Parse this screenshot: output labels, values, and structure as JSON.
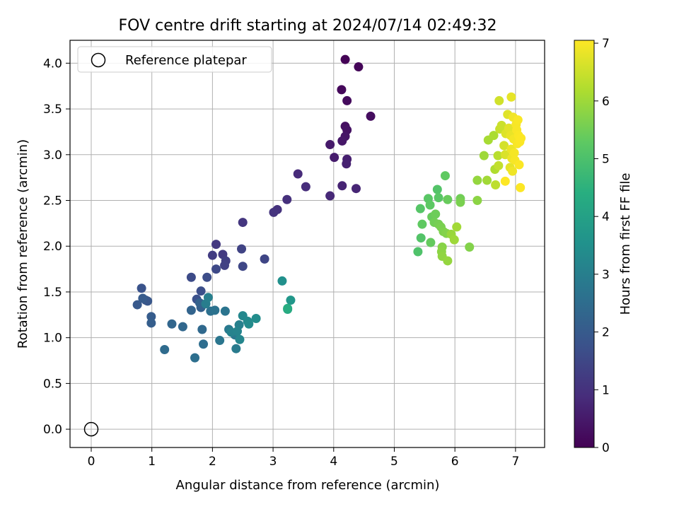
{
  "chart_data": {
    "type": "scatter",
    "title": "FOV centre drift starting at 2024/07/14 02:49:32",
    "xlabel": "Angular distance from reference (arcmin)",
    "ylabel": "Rotation from reference (arcmin)",
    "xlim": [
      -0.35,
      7.48
    ],
    "ylim": [
      -0.2,
      4.25
    ],
    "x_ticks": [
      0,
      1,
      2,
      3,
      4,
      5,
      6,
      7
    ],
    "y_ticks": [
      0.0,
      0.5,
      1.0,
      1.5,
      2.0,
      2.5,
      3.0,
      3.5,
      4.0
    ],
    "x_tick_labels": [
      "0",
      "1",
      "2",
      "3",
      "4",
      "5",
      "6",
      "7"
    ],
    "y_tick_labels": [
      "0.0",
      "0.5",
      "1.0",
      "1.5",
      "2.0",
      "2.5",
      "3.0",
      "3.5",
      "4.0"
    ],
    "grid": true,
    "colormap": "viridis",
    "legend": {
      "placement": "upper-left",
      "label": "Reference platepar"
    },
    "reference_point": {
      "x": 0,
      "y": 0
    },
    "colorbar": {
      "label": "Hours from first FF file",
      "range": [
        0,
        7.05
      ],
      "ticks": [
        0,
        1,
        2,
        3,
        4,
        5,
        6,
        7
      ],
      "tick_labels": [
        "0",
        "1",
        "2",
        "3",
        "4",
        "5",
        "6",
        "7"
      ]
    },
    "point_fields": [
      "x_arcmin",
      "y_arcmin",
      "hours"
    ],
    "points": [
      [
        4.19,
        4.04,
        0.05
      ],
      [
        4.41,
        3.96,
        0.1
      ],
      [
        4.13,
        3.71,
        0.15
      ],
      [
        4.22,
        3.59,
        0.2
      ],
      [
        4.61,
        3.42,
        0.25
      ],
      [
        4.19,
        3.31,
        0.3
      ],
      [
        4.22,
        3.27,
        0.35
      ],
      [
        4.19,
        3.2,
        0.4
      ],
      [
        4.14,
        3.15,
        0.45
      ],
      [
        3.94,
        3.11,
        0.5
      ],
      [
        4.01,
        2.97,
        0.55
      ],
      [
        4.22,
        2.95,
        0.6
      ],
      [
        4.21,
        2.9,
        0.65
      ],
      [
        4.14,
        2.66,
        0.7
      ],
      [
        4.37,
        2.63,
        0.75
      ],
      [
        3.94,
        2.55,
        0.8
      ],
      [
        3.41,
        2.79,
        0.85
      ],
      [
        3.54,
        2.65,
        0.9
      ],
      [
        3.23,
        2.51,
        0.95
      ],
      [
        3.07,
        2.4,
        1.0
      ],
      [
        3.01,
        2.37,
        1.05
      ],
      [
        2.5,
        2.26,
        1.1
      ],
      [
        2.06,
        2.02,
        1.15
      ],
      [
        2.17,
        1.91,
        1.2
      ],
      [
        2.0,
        1.9,
        1.25
      ],
      [
        2.22,
        1.84,
        1.3
      ],
      [
        2.2,
        1.79,
        1.35
      ],
      [
        2.48,
        1.97,
        1.4
      ],
      [
        2.86,
        1.86,
        1.45
      ],
      [
        2.5,
        1.78,
        1.5
      ],
      [
        2.06,
        1.75,
        1.55
      ],
      [
        1.65,
        1.66,
        1.6
      ],
      [
        1.91,
        1.66,
        1.65
      ],
      [
        1.81,
        1.51,
        1.7
      ],
      [
        1.74,
        1.42,
        1.75
      ],
      [
        0.83,
        1.54,
        1.8
      ],
      [
        0.9,
        1.41,
        1.85
      ],
      [
        0.93,
        1.4,
        1.9
      ],
      [
        0.76,
        1.36,
        1.95
      ],
      [
        0.85,
        1.43,
        2.0
      ],
      [
        0.99,
        1.23,
        2.05
      ],
      [
        0.99,
        1.16,
        2.1
      ],
      [
        1.81,
        1.33,
        2.15
      ],
      [
        1.79,
        1.38,
        2.2
      ],
      [
        1.65,
        1.3,
        2.25
      ],
      [
        1.33,
        1.15,
        2.3
      ],
      [
        1.51,
        1.12,
        2.35
      ],
      [
        1.83,
        1.09,
        2.4
      ],
      [
        1.21,
        0.87,
        2.45
      ],
      [
        1.85,
        0.93,
        2.5
      ],
      [
        1.71,
        0.78,
        2.55
      ],
      [
        1.97,
        1.29,
        2.6
      ],
      [
        2.04,
        1.3,
        2.65
      ],
      [
        2.21,
        1.29,
        2.7
      ],
      [
        2.12,
        0.97,
        2.75
      ],
      [
        2.37,
        1.03,
        2.8
      ],
      [
        2.27,
        1.09,
        2.85
      ],
      [
        2.39,
        0.88,
        2.9
      ],
      [
        1.89,
        1.37,
        2.95
      ],
      [
        1.93,
        1.44,
        3.0
      ],
      [
        2.44,
        1.14,
        3.05
      ],
      [
        2.31,
        1.06,
        3.1
      ],
      [
        2.41,
        1.07,
        3.15
      ],
      [
        2.45,
        0.98,
        3.2
      ],
      [
        2.5,
        1.24,
        3.25
      ],
      [
        2.58,
        1.18,
        3.3
      ],
      [
        2.6,
        1.15,
        3.35
      ],
      [
        2.72,
        1.21,
        3.4
      ],
      [
        3.15,
        1.62,
        3.5
      ],
      [
        3.29,
        1.41,
        3.7
      ],
      [
        3.24,
        1.31,
        4.2
      ],
      [
        3.24,
        1.32,
        4.35
      ],
      [
        5.39,
        1.94,
        5.05
      ],
      [
        5.44,
        2.09,
        5.1
      ],
      [
        5.43,
        2.41,
        5.15
      ],
      [
        5.56,
        2.52,
        5.2
      ],
      [
        5.59,
        2.45,
        5.25
      ],
      [
        5.46,
        2.24,
        5.3
      ],
      [
        5.6,
        2.04,
        5.35
      ],
      [
        5.62,
        2.32,
        5.4
      ],
      [
        5.68,
        2.35,
        5.45
      ],
      [
        5.66,
        2.26,
        5.5
      ],
      [
        5.73,
        2.24,
        5.55
      ],
      [
        5.77,
        2.21,
        5.6
      ],
      [
        5.81,
        2.16,
        5.65
      ],
      [
        5.86,
        2.14,
        5.7
      ],
      [
        5.79,
        1.99,
        5.75
      ],
      [
        5.78,
        1.94,
        5.8
      ],
      [
        5.79,
        1.89,
        5.85
      ],
      [
        5.88,
        1.84,
        5.9
      ],
      [
        5.94,
        2.13,
        5.95
      ],
      [
        5.99,
        2.07,
        6.0
      ],
      [
        6.03,
        2.21,
        6.05
      ],
      [
        5.71,
        2.62,
        5.1
      ],
      [
        5.73,
        2.53,
        5.2
      ],
      [
        5.84,
        2.77,
        5.3
      ],
      [
        5.88,
        2.51,
        5.4
      ],
      [
        6.09,
        2.52,
        5.5
      ],
      [
        6.09,
        2.48,
        5.6
      ],
      [
        6.24,
        1.99,
        5.7
      ],
      [
        6.37,
        2.5,
        5.8
      ],
      [
        6.37,
        2.72,
        5.9
      ],
      [
        6.48,
        2.99,
        6.0
      ],
      [
        6.53,
        2.72,
        6.05
      ],
      [
        6.55,
        3.16,
        6.1
      ],
      [
        6.64,
        3.21,
        6.15
      ],
      [
        6.66,
        2.84,
        6.2
      ],
      [
        6.71,
        2.99,
        6.3
      ],
      [
        6.67,
        2.67,
        6.35
      ],
      [
        6.72,
        2.88,
        6.4
      ],
      [
        6.74,
        3.28,
        6.45
      ],
      [
        6.77,
        3.32,
        6.5
      ],
      [
        6.73,
        3.59,
        6.55
      ],
      [
        6.81,
        3.1,
        6.6
      ],
      [
        6.83,
        3.0,
        6.65
      ],
      [
        6.84,
        3.23,
        6.7
      ],
      [
        6.87,
        3.44,
        6.72
      ],
      [
        6.89,
        3.29,
        6.75
      ],
      [
        6.91,
        2.86,
        6.78
      ],
      [
        6.93,
        3.63,
        6.8
      ],
      [
        6.92,
        3.21,
        6.83
      ],
      [
        6.93,
        3.06,
        6.85
      ],
      [
        6.94,
        2.96,
        6.88
      ],
      [
        6.95,
        2.82,
        6.9
      ],
      [
        6.96,
        3.41,
        6.92
      ],
      [
        6.97,
        3.17,
        6.94
      ],
      [
        6.98,
        3.02,
        6.96
      ],
      [
        6.99,
        2.94,
        6.97
      ],
      [
        7.01,
        3.33,
        6.98
      ],
      [
        7.02,
        3.27,
        6.99
      ],
      [
        7.03,
        3.12,
        7.0
      ],
      [
        7.04,
        3.38,
        7.01
      ],
      [
        7.05,
        3.21,
        7.02
      ],
      [
        7.06,
        2.89,
        7.03
      ],
      [
        7.07,
        3.14,
        7.03
      ],
      [
        7.08,
        2.64,
        7.04
      ],
      [
        7.09,
        3.18,
        7.04
      ],
      [
        6.83,
        2.71,
        7.05
      ]
    ]
  }
}
